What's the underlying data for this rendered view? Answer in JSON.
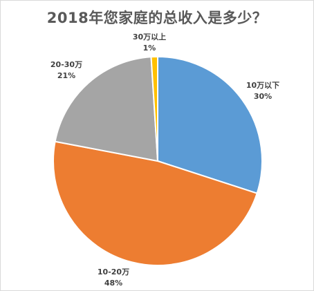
{
  "chart_data": {
    "type": "pie",
    "title": "2018年您家庭的总收入是多少？",
    "slices": [
      {
        "label": "10万以下",
        "value": 30,
        "value_label": "30%",
        "color": "#5b9bd5"
      },
      {
        "label": "10-20万",
        "value": 48,
        "value_label": "48%",
        "color": "#ed7d31"
      },
      {
        "label": "20-30万",
        "value": 21,
        "value_label": "21%",
        "color": "#a5a5a5"
      },
      {
        "label": "30万以上",
        "value": 1,
        "value_label": "1%",
        "color": "#ffc000"
      }
    ],
    "start_angle": "12 o'clock",
    "direction": "clockwise",
    "legend": "none",
    "data_labels": "outside"
  }
}
